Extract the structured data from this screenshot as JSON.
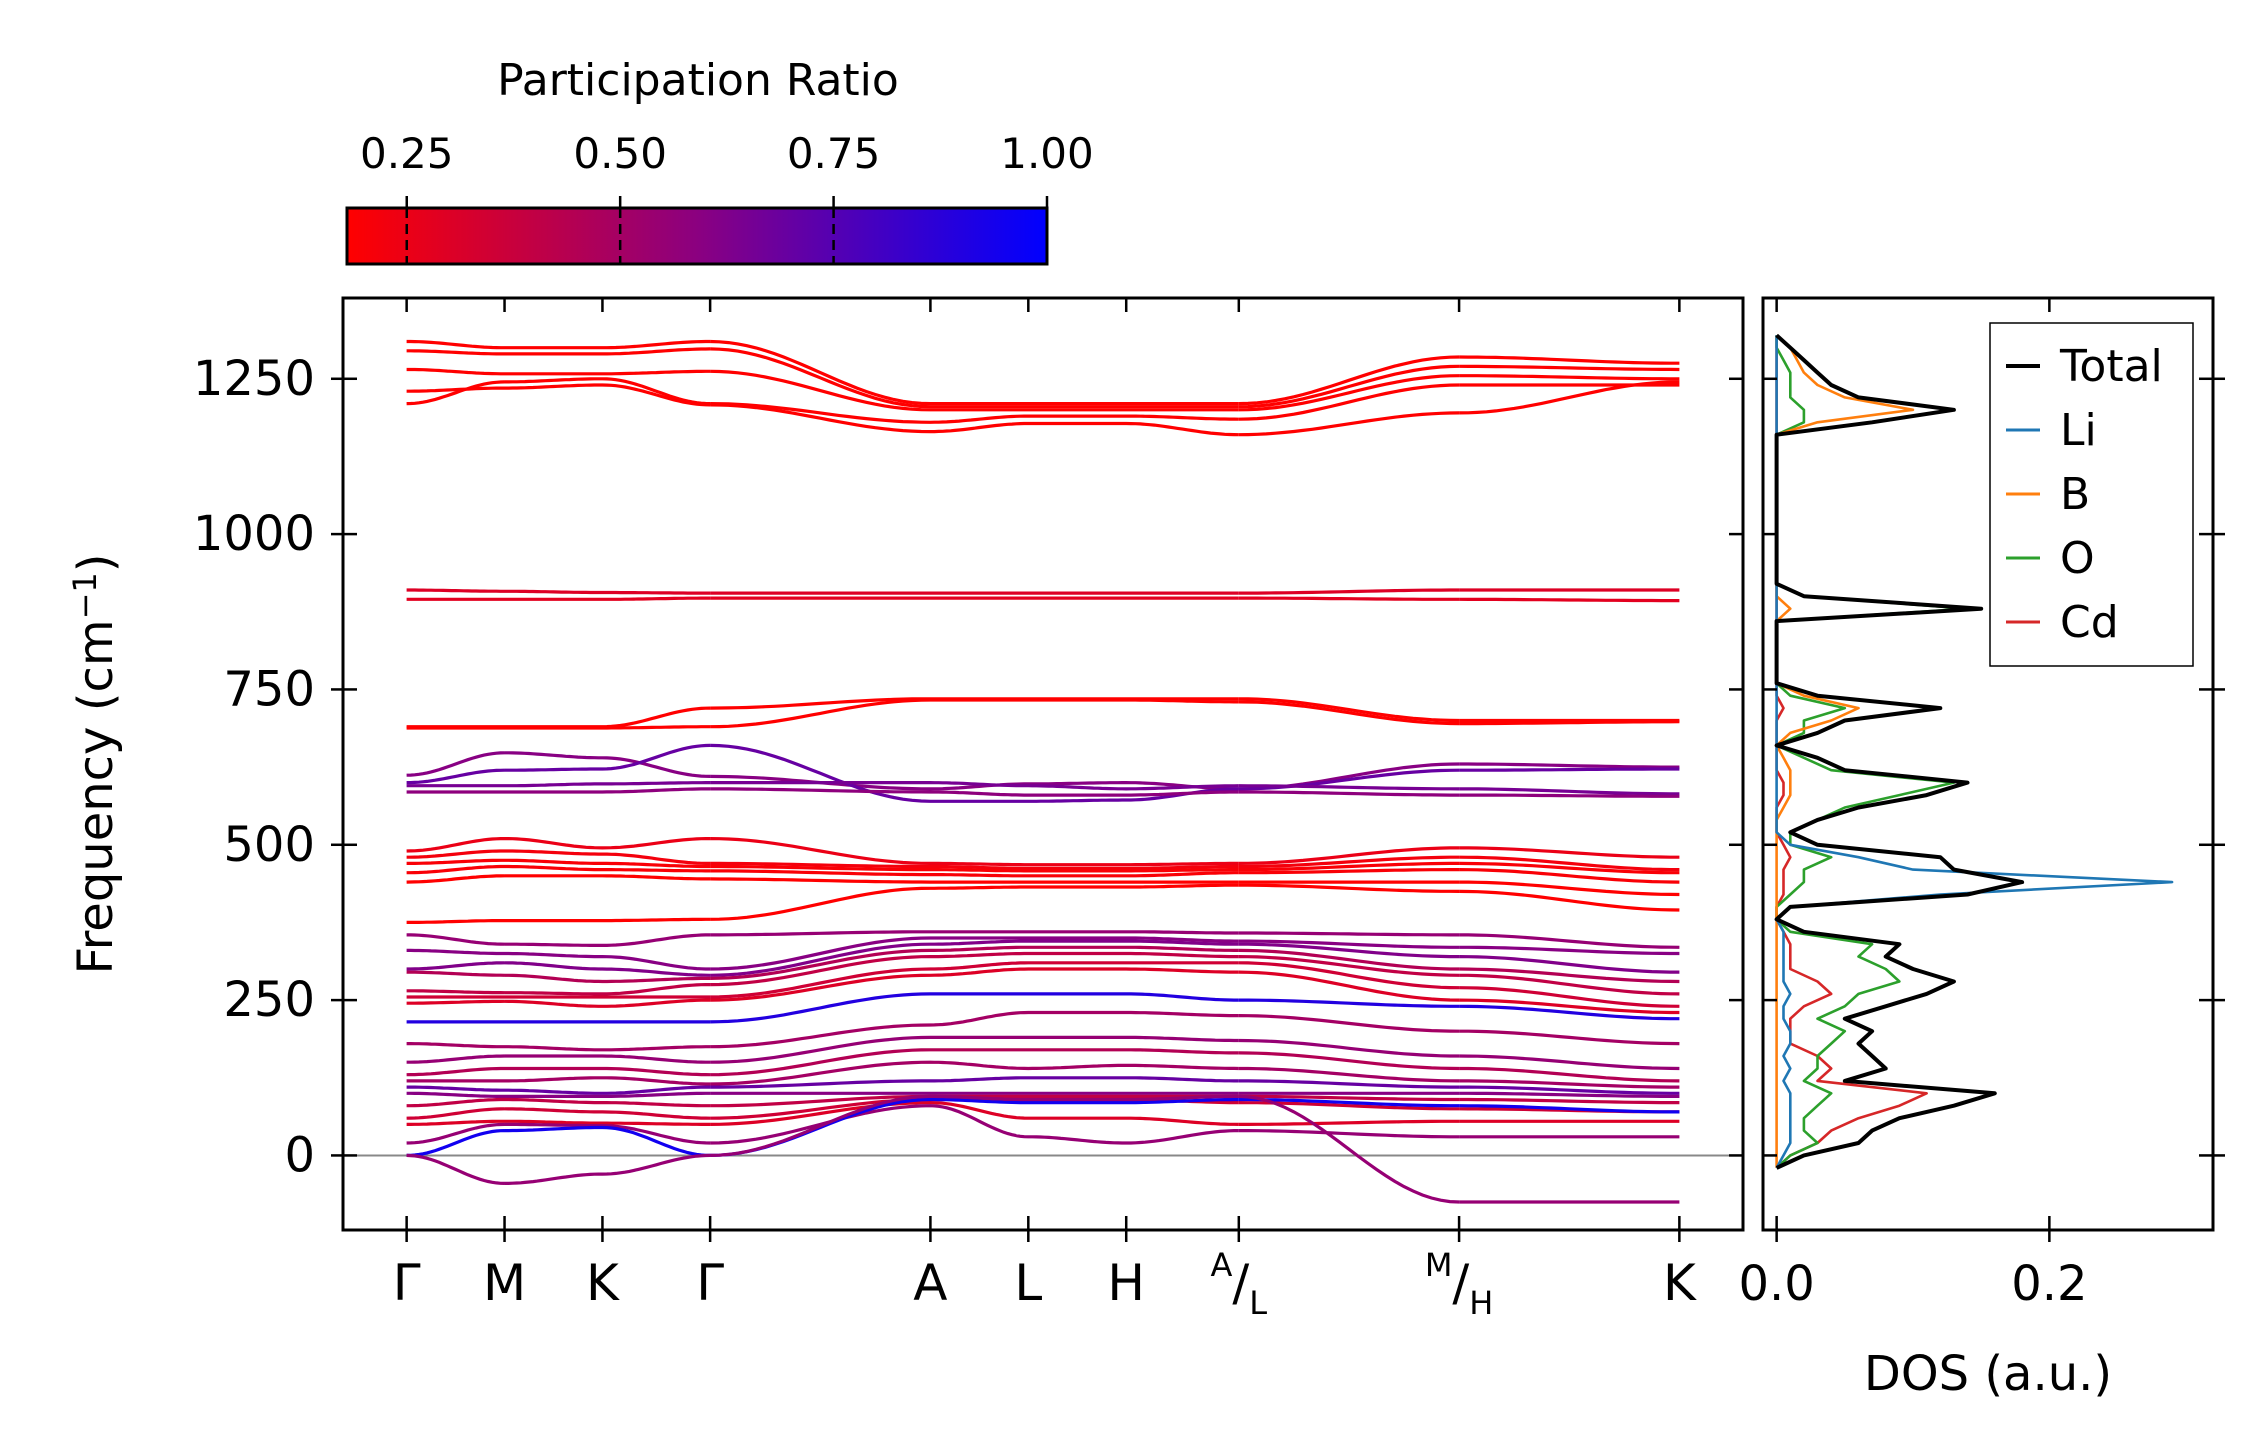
{
  "chart_data": [
    {
      "type": "line",
      "name": "phonon-band-structure",
      "ylabel_main": "Frequency (cm",
      "ylabel_sup": "−1",
      "ylabel_close": ")",
      "ylim": [
        -120,
        1380
      ],
      "yticks": [
        0,
        250,
        500,
        750,
        1000,
        1250
      ],
      "ytick_labels": [
        "0",
        "250",
        "500",
        "750",
        "1000",
        "1250"
      ],
      "segments": [
        [
          0,
          1
        ],
        [
          1,
          2,
          3
        ],
        [
          3,
          4,
          5,
          6,
          7
        ],
        [
          7,
          8
        ],
        [
          8,
          9
        ]
      ],
      "xticks": [
        {
          "pos": 0.0,
          "label": "Γ"
        },
        {
          "pos": 1.0,
          "label": "M"
        },
        {
          "pos": 2.0,
          "label": "K"
        },
        {
          "pos": 3.1,
          "label": "Γ"
        },
        {
          "pos": 5.35,
          "label": "A"
        },
        {
          "pos": 6.35,
          "label": "L"
        },
        {
          "pos": 7.35,
          "label": "H"
        },
        {
          "pos": 8.5,
          "label_sup": "A",
          "label_sub": "L"
        },
        {
          "pos": 10.75,
          "label_sup": "M",
          "label_sub": "H"
        },
        {
          "pos": 13.0,
          "label": "K"
        }
      ],
      "xlim": [
        -0.65,
        13.65
      ],
      "zero_line": 0,
      "bands": [
        {
          "pr": 0.15,
          "v": [
            1310,
            1300,
            1300,
            1310,
            1210,
            1210,
            1210,
            1210,
            1285,
            1275
          ]
        },
        {
          "pr": 0.18,
          "v": [
            1295,
            1290,
            1290,
            1298,
            1205,
            1205,
            1205,
            1205,
            1270,
            1265
          ]
        },
        {
          "pr": 0.16,
          "v": [
            1265,
            1258,
            1258,
            1262,
            1200,
            1200,
            1200,
            1200,
            1255,
            1250
          ]
        },
        {
          "pr": 0.14,
          "v": [
            1210,
            1245,
            1250,
            1210,
            1180,
            1190,
            1190,
            1185,
            1240,
            1240
          ]
        },
        {
          "pr": 0.16,
          "v": [
            1230,
            1235,
            1240,
            1208,
            1165,
            1178,
            1178,
            1160,
            1195,
            1245
          ]
        },
        {
          "pr": 0.3,
          "v": [
            910,
            908,
            906,
            905,
            905,
            905,
            905,
            905,
            910,
            910
          ]
        },
        {
          "pr": 0.28,
          "v": [
            895,
            895,
            895,
            897,
            897,
            897,
            897,
            897,
            895,
            893
          ]
        },
        {
          "pr": 0.06,
          "v": [
            690,
            690,
            690,
            720,
            735,
            735,
            735,
            735,
            700,
            700
          ]
        },
        {
          "pr": 0.06,
          "v": [
            688,
            688,
            688,
            690,
            733,
            733,
            733,
            730,
            695,
            698
          ]
        },
        {
          "pr": 0.6,
          "v": [
            612,
            648,
            640,
            610,
            590,
            598,
            600,
            590,
            630,
            625
          ]
        },
        {
          "pr": 0.7,
          "v": [
            600,
            620,
            622,
            660,
            570,
            570,
            572,
            590,
            620,
            622
          ]
        },
        {
          "pr": 0.65,
          "v": [
            595,
            595,
            598,
            600,
            600,
            595,
            590,
            595,
            590,
            582
          ]
        },
        {
          "pr": 0.58,
          "v": [
            585,
            585,
            585,
            590,
            585,
            580,
            580,
            585,
            580,
            578
          ]
        },
        {
          "pr": 0.25,
          "v": [
            490,
            510,
            495,
            510,
            470,
            468,
            468,
            470,
            495,
            480
          ]
        },
        {
          "pr": 0.22,
          "v": [
            480,
            490,
            485,
            470,
            465,
            462,
            462,
            465,
            480,
            460
          ]
        },
        {
          "pr": 0.2,
          "v": [
            470,
            475,
            470,
            465,
            460,
            458,
            458,
            460,
            470,
            455
          ]
        },
        {
          "pr": 0.2,
          "v": [
            455,
            465,
            460,
            458,
            452,
            450,
            450,
            455,
            460,
            440
          ]
        },
        {
          "pr": 0.18,
          "v": [
            440,
            450,
            450,
            445,
            440,
            440,
            440,
            440,
            440,
            420
          ]
        },
        {
          "pr": 0.15,
          "v": [
            375,
            378,
            378,
            380,
            430,
            432,
            432,
            435,
            425,
            395
          ]
        },
        {
          "pr": 0.55,
          "v": [
            355,
            340,
            338,
            355,
            360,
            360,
            360,
            358,
            355,
            335
          ]
        },
        {
          "pr": 0.6,
          "v": [
            330,
            325,
            320,
            300,
            350,
            350,
            350,
            345,
            335,
            325
          ]
        },
        {
          "pr": 0.62,
          "v": [
            300,
            310,
            300,
            290,
            340,
            345,
            345,
            340,
            320,
            295
          ]
        },
        {
          "pr": 0.45,
          "v": [
            295,
            290,
            280,
            285,
            330,
            335,
            335,
            330,
            300,
            280
          ]
        },
        {
          "pr": 0.4,
          "v": [
            265,
            262,
            260,
            275,
            320,
            325,
            325,
            320,
            290,
            260
          ]
        },
        {
          "pr": 0.35,
          "v": [
            255,
            255,
            255,
            255,
            300,
            310,
            310,
            310,
            270,
            240
          ]
        },
        {
          "pr": 0.3,
          "v": [
            245,
            248,
            240,
            250,
            290,
            300,
            300,
            295,
            250,
            230
          ]
        },
        {
          "pr": 0.9,
          "v": [
            215,
            215,
            215,
            215,
            260,
            260,
            260,
            250,
            240,
            220
          ]
        },
        {
          "pr": 0.5,
          "v": [
            180,
            175,
            170,
            175,
            210,
            230,
            230,
            225,
            200,
            180
          ]
        },
        {
          "pr": 0.55,
          "v": [
            150,
            160,
            160,
            150,
            190,
            190,
            190,
            185,
            160,
            140
          ]
        },
        {
          "pr": 0.45,
          "v": [
            130,
            140,
            140,
            130,
            170,
            170,
            170,
            165,
            140,
            120
          ]
        },
        {
          "pr": 0.5,
          "v": [
            120,
            120,
            125,
            115,
            150,
            140,
            145,
            140,
            120,
            110
          ]
        },
        {
          "pr": 0.7,
          "v": [
            110,
            105,
            100,
            110,
            120,
            125,
            125,
            120,
            110,
            100
          ]
        },
        {
          "pr": 0.6,
          "v": [
            100,
            95,
            95,
            100,
            100,
            100,
            100,
            100,
            100,
            95
          ]
        },
        {
          "pr": 0.4,
          "v": [
            80,
            90,
            85,
            80,
            95,
            95,
            95,
            95,
            90,
            85
          ]
        },
        {
          "pr": 0.35,
          "v": [
            60,
            75,
            70,
            60,
            90,
            90,
            90,
            85,
            75,
            70
          ]
        },
        {
          "pr": 0.3,
          "v": [
            50,
            55,
            52,
            50,
            85,
            60,
            60,
            50,
            55,
            55
          ]
        },
        {
          "pr": 0.55,
          "v": [
            20,
            50,
            48,
            20,
            80,
            30,
            20,
            40,
            30,
            30
          ]
        },
        {
          "pr": 0.95,
          "v": [
            0,
            40,
            45,
            0,
            90,
            85,
            85,
            90,
            80,
            70
          ]
        },
        {
          "pr": 0.55,
          "v": [
            0,
            -45,
            -30,
            0,
            95,
            90,
            90,
            95,
            -75,
            -75
          ]
        }
      ]
    },
    {
      "type": "line",
      "name": "density-of-states",
      "xlabel": "DOS (a.u.)",
      "xlim": [
        -0.01,
        0.32
      ],
      "xticks": [
        0.0,
        0.2
      ],
      "xtick_labels": [
        "0.0",
        "0.2"
      ],
      "ylim": [
        -120,
        1380
      ],
      "freq": [
        -20,
        0,
        20,
        40,
        60,
        80,
        100,
        120,
        140,
        160,
        180,
        200,
        220,
        240,
        260,
        280,
        300,
        320,
        340,
        360,
        380,
        400,
        420,
        440,
        460,
        480,
        500,
        520,
        540,
        560,
        580,
        600,
        620,
        640,
        660,
        680,
        700,
        720,
        740,
        760,
        780,
        860,
        880,
        900,
        920,
        940,
        1160,
        1180,
        1200,
        1220,
        1240,
        1260,
        1280,
        1300,
        1320
      ],
      "series": [
        {
          "name": "Total",
          "color": "#000000",
          "values": [
            0.0,
            0.02,
            0.06,
            0.07,
            0.09,
            0.13,
            0.16,
            0.05,
            0.08,
            0.07,
            0.06,
            0.07,
            0.05,
            0.08,
            0.11,
            0.13,
            0.1,
            0.08,
            0.09,
            0.02,
            0.0,
            0.01,
            0.14,
            0.18,
            0.13,
            0.12,
            0.03,
            0.01,
            0.03,
            0.06,
            0.11,
            0.14,
            0.05,
            0.03,
            0.0,
            0.03,
            0.05,
            0.12,
            0.03,
            0.0,
            0.0,
            0.0,
            0.15,
            0.02,
            0.0,
            0.0,
            0.0,
            0.07,
            0.13,
            0.06,
            0.04,
            0.03,
            0.02,
            0.01,
            0.0
          ]
        },
        {
          "name": "Li",
          "color": "#1f77b4",
          "values": [
            0.0,
            0.005,
            0.01,
            0.01,
            0.01,
            0.01,
            0.01,
            0.005,
            0.01,
            0.005,
            0.01,
            0.01,
            0.005,
            0.005,
            0.01,
            0.005,
            0.005,
            0.005,
            0.005,
            0.005,
            0.0,
            0.01,
            0.12,
            0.29,
            0.1,
            0.06,
            0.01,
            0.0,
            0.0,
            0.0,
            0.0,
            0.0,
            0.0,
            0.0,
            0.0,
            0.0,
            0.0,
            0.0,
            0.0,
            0.0,
            0.0,
            0.0,
            0.0,
            0.0,
            0.0,
            0.0,
            0.0,
            0.0,
            0.0,
            0.0,
            0.0,
            0.0,
            0.0,
            0.0,
            0.0
          ]
        },
        {
          "name": "B",
          "color": "#ff7f0e",
          "values": [
            0.0,
            0.0,
            0.0,
            0.0,
            0.0,
            0.0,
            0.0,
            0.0,
            0.0,
            0.0,
            0.0,
            0.0,
            0.0,
            0.0,
            0.0,
            0.0,
            0.0,
            0.0,
            0.0,
            0.0,
            0.0,
            0.0,
            0.0,
            0.0,
            0.0,
            0.0,
            0.0,
            0.0,
            0.0,
            0.005,
            0.01,
            0.01,
            0.01,
            0.005,
            0.0,
            0.01,
            0.04,
            0.06,
            0.02,
            0.0,
            0.0,
            0.0,
            0.01,
            0.0,
            0.0,
            0.0,
            0.0,
            0.03,
            0.1,
            0.05,
            0.03,
            0.02,
            0.015,
            0.01,
            0.0
          ]
        },
        {
          "name": "O",
          "color": "#2ca02c",
          "values": [
            0.0,
            0.01,
            0.03,
            0.02,
            0.02,
            0.03,
            0.04,
            0.02,
            0.03,
            0.03,
            0.04,
            0.05,
            0.03,
            0.05,
            0.06,
            0.09,
            0.08,
            0.06,
            0.07,
            0.01,
            0.0,
            0.0,
            0.01,
            0.02,
            0.02,
            0.04,
            0.01,
            0.01,
            0.03,
            0.05,
            0.09,
            0.13,
            0.04,
            0.02,
            0.0,
            0.02,
            0.02,
            0.05,
            0.01,
            0.0,
            0.0,
            0.0,
            0.14,
            0.02,
            0.0,
            0.0,
            0.0,
            0.02,
            0.02,
            0.01,
            0.01,
            0.01,
            0.005,
            0.0,
            0.0
          ]
        },
        {
          "name": "Cd",
          "color": "#d62728",
          "values": [
            0.0,
            0.01,
            0.03,
            0.04,
            0.06,
            0.09,
            0.11,
            0.03,
            0.04,
            0.03,
            0.01,
            0.01,
            0.01,
            0.02,
            0.04,
            0.03,
            0.01,
            0.01,
            0.01,
            0.005,
            0.0,
            0.0,
            0.005,
            0.005,
            0.005,
            0.01,
            0.005,
            0.0,
            0.0,
            0.0,
            0.005,
            0.005,
            0.0,
            0.0,
            0.0,
            0.0,
            0.0,
            0.005,
            0.0,
            0.0,
            0.0,
            0.0,
            0.0,
            0.0,
            0.0,
            0.0,
            0.0,
            0.0,
            0.0,
            0.0,
            0.0,
            0.0,
            0.0,
            0.0,
            0.0
          ]
        }
      ]
    },
    {
      "type": "heatmap",
      "name": "participation-ratio-colorbar",
      "title": "Participation Ratio",
      "range": [
        0.18,
        1.0
      ],
      "ticks": [
        0.25,
        0.5,
        0.75,
        1.0
      ],
      "tick_labels": [
        "0.25",
        "0.50",
        "0.75",
        "1.00"
      ],
      "color_low": "#ff0000",
      "color_mid": "#8b0080",
      "color_high": "#0000ff"
    }
  ]
}
